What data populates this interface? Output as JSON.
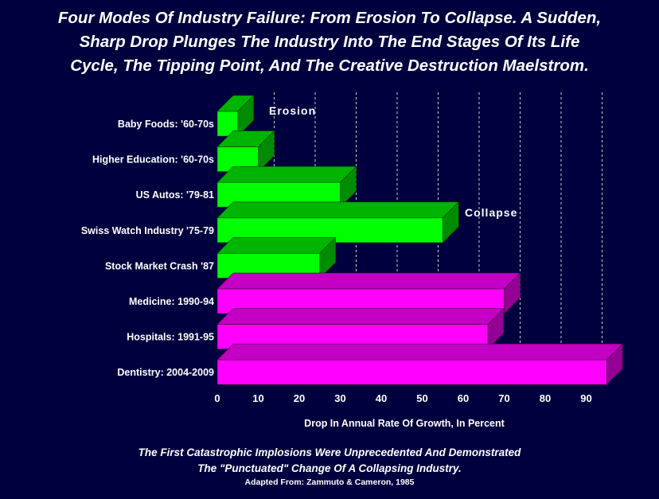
{
  "title_lines": [
    "Four Modes Of Industry Failure: From Erosion To Collapse. A Sudden,",
    "Sharp Drop Plunges The Industry Into The End Stages Of Its Life",
    "Cycle, The Tipping Point, And The Creative Destruction Maelstrom."
  ],
  "footer": {
    "line1": "The First Catastrophic Implosions Were Unprecedented And Demonstrated",
    "line2": "The \"Punctuated\" Change Of A Collapsing Industry.",
    "source": "Adapted From: Zammuto & Cameron, 1985"
  },
  "colors": {
    "background": "#00003e",
    "green": "#00ff00",
    "magenta": "#ff00ff"
  },
  "chart_data": {
    "type": "bar",
    "orientation": "horizontal",
    "categories": [
      "Baby Foods: '60-70s",
      "Higher Education: '60-70s",
      "US Autos: '79-81",
      "Swiss Watch Industry '75-79",
      "Stock Market Crash '87",
      "Medicine: 1990-94",
      "Hospitals: 1991-95",
      "Dentistry: 2004-2009"
    ],
    "values": [
      5,
      10,
      30,
      55,
      25,
      70,
      66,
      95
    ],
    "bar_colors": [
      "green",
      "green",
      "green",
      "green",
      "green",
      "magenta",
      "magenta",
      "magenta"
    ],
    "xlabel": "Drop In Annual Rate Of Growth, In Percent",
    "xticks": [
      "0",
      "10",
      "20",
      "30",
      "40",
      "50",
      "60",
      "70",
      "80",
      "90"
    ],
    "xlim": [
      0,
      100
    ],
    "grid": "vertical dashed",
    "annotations": [
      {
        "text": "Erosion",
        "near_category": 0
      },
      {
        "text": "Collapse",
        "near_category": 3
      }
    ]
  }
}
